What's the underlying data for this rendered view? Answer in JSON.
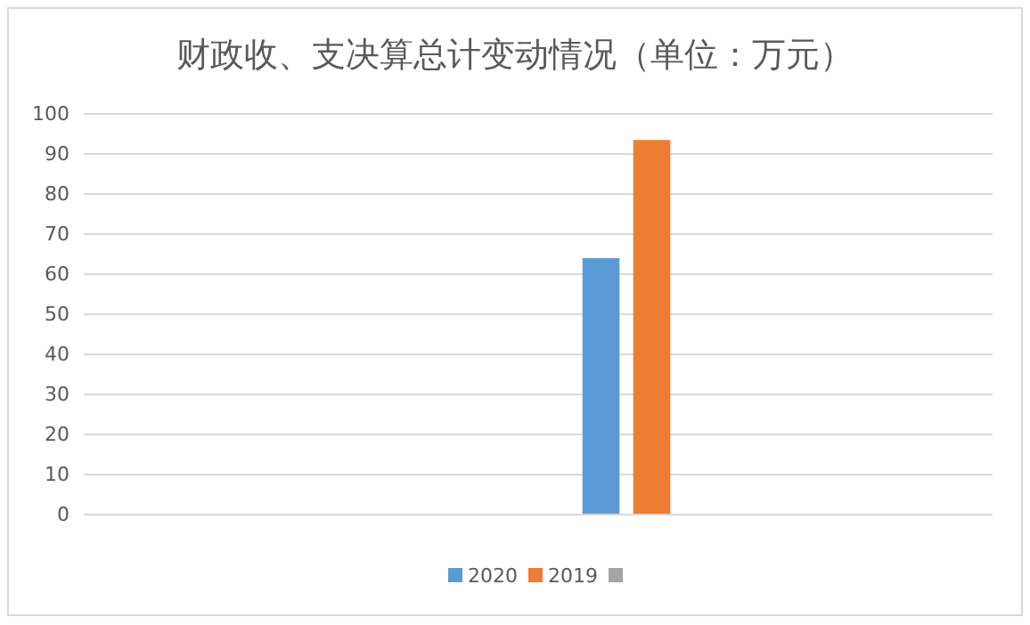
{
  "chart_data": {
    "type": "bar",
    "title": "财政收、支决算总计变动情况（单位：万元）",
    "categories": [
      null,
      null,
      null,
      null
    ],
    "series": [
      {
        "name": "2020",
        "color": "#5b9bd5",
        "values": [
          null,
          null,
          64,
          null
        ]
      },
      {
        "name": "2019",
        "color": "#ed7d31",
        "values": [
          null,
          null,
          93.5,
          null
        ]
      },
      {
        "color": "#a5a5a5",
        "values": [
          null,
          null,
          null,
          null
        ]
      }
    ],
    "ylim": [
      0,
      100
    ],
    "yticks": [
      0,
      10,
      20,
      30,
      40,
      50,
      60,
      70,
      80,
      90,
      100
    ],
    "grid": "y",
    "legend": "bottom"
  }
}
